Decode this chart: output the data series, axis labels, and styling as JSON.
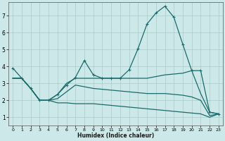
{
  "xlabel": "Humidex (Indice chaleur)",
  "background_color": "#cce8e8",
  "grid_color": "#aacccc",
  "line_color": "#1a6b6b",
  "xlim": [
    -0.5,
    23.5
  ],
  "ylim": [
    0.5,
    7.8
  ],
  "yticks": [
    1,
    2,
    3,
    4,
    5,
    6,
    7
  ],
  "xticks": [
    0,
    1,
    2,
    3,
    4,
    5,
    6,
    7,
    8,
    9,
    10,
    11,
    12,
    13,
    14,
    15,
    16,
    17,
    18,
    19,
    20,
    21,
    22,
    23
  ],
  "series1_x": [
    0,
    1,
    2,
    3,
    4,
    5,
    6,
    7,
    8,
    9,
    10,
    11,
    12,
    13,
    14,
    15,
    16,
    17,
    18,
    19,
    20,
    21,
    22,
    23
  ],
  "series1_y": [
    3.9,
    3.3,
    2.7,
    2.0,
    2.0,
    2.35,
    2.9,
    3.35,
    4.35,
    3.5,
    3.3,
    3.3,
    3.3,
    3.8,
    5.05,
    6.5,
    7.15,
    7.55,
    6.9,
    5.3,
    3.75,
    3.75,
    1.3,
    1.2
  ],
  "series2_x": [
    0,
    1,
    2,
    3,
    4,
    5,
    6,
    7,
    8,
    9,
    10,
    11,
    12,
    13,
    14,
    15,
    16,
    17,
    18,
    19,
    20,
    21,
    22,
    23
  ],
  "series2_y": [
    3.3,
    3.3,
    2.7,
    2.0,
    2.0,
    2.35,
    3.0,
    3.3,
    3.3,
    3.3,
    3.3,
    3.3,
    3.3,
    3.3,
    3.3,
    3.3,
    3.4,
    3.5,
    3.55,
    3.6,
    3.75,
    2.4,
    1.3,
    1.2
  ],
  "series3_x": [
    0,
    1,
    2,
    3,
    4,
    5,
    6,
    7,
    8,
    9,
    10,
    11,
    12,
    13,
    14,
    15,
    16,
    17,
    18,
    19,
    20,
    21,
    22,
    23
  ],
  "series3_y": [
    3.3,
    3.3,
    2.7,
    2.0,
    2.0,
    1.85,
    1.85,
    1.8,
    1.8,
    1.8,
    1.75,
    1.7,
    1.65,
    1.6,
    1.55,
    1.5,
    1.45,
    1.4,
    1.35,
    1.3,
    1.25,
    1.2,
    1.0,
    1.2
  ],
  "series4_x": [
    0,
    1,
    2,
    3,
    4,
    5,
    6,
    7,
    8,
    9,
    10,
    11,
    12,
    13,
    14,
    15,
    16,
    17,
    18,
    19,
    20,
    21,
    22,
    23
  ],
  "series4_y": [
    3.3,
    3.3,
    2.7,
    2.0,
    2.0,
    2.1,
    2.5,
    2.9,
    2.8,
    2.7,
    2.65,
    2.6,
    2.55,
    2.5,
    2.45,
    2.4,
    2.4,
    2.4,
    2.35,
    2.3,
    2.2,
    2.0,
    1.1,
    1.2
  ]
}
